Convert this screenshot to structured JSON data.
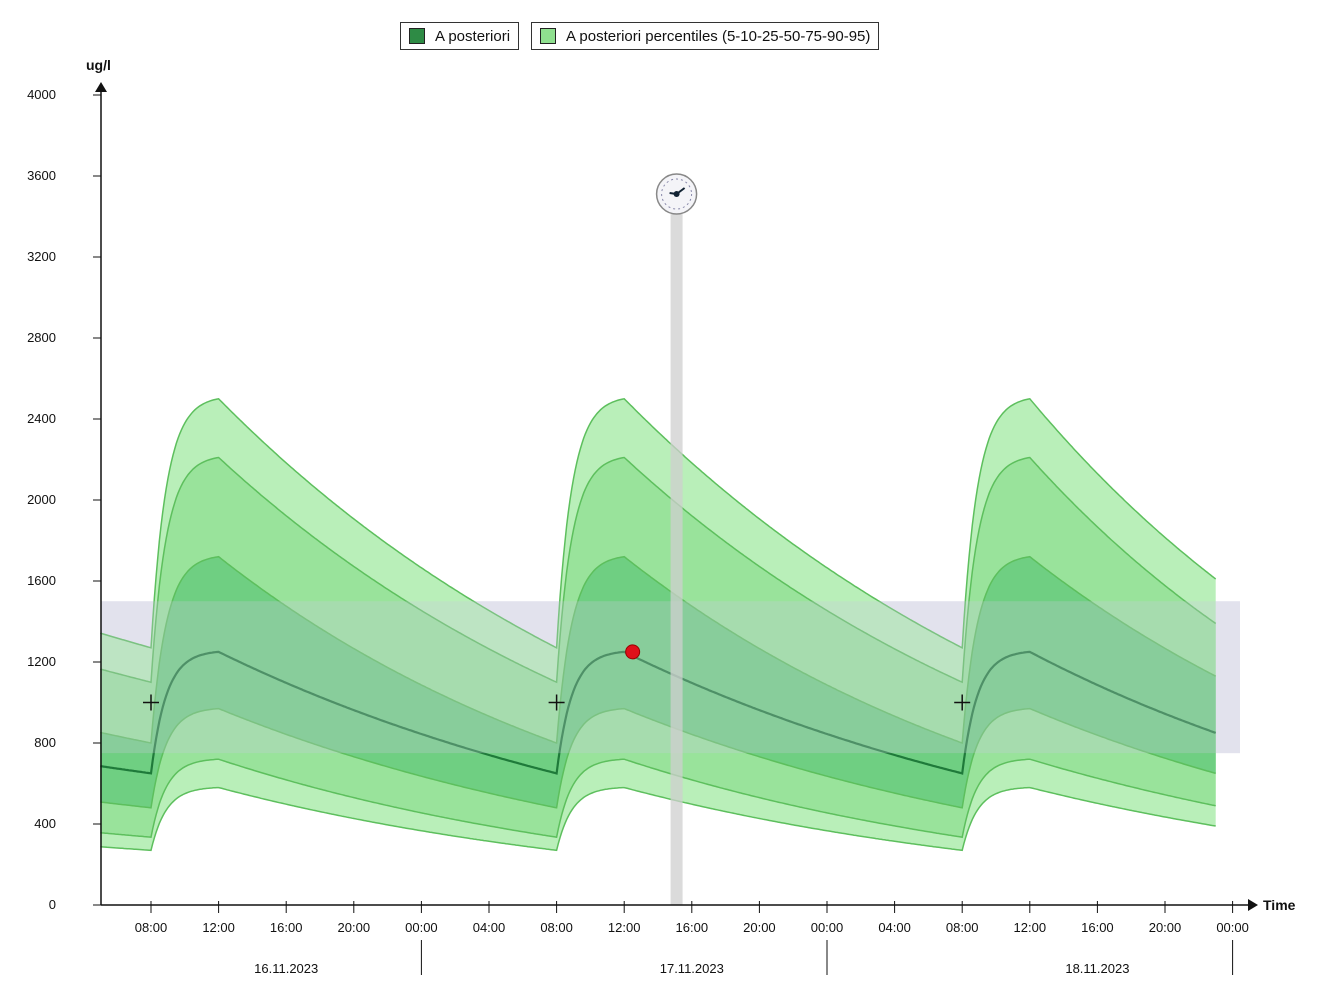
{
  "legend": {
    "items": [
      {
        "label": "A posteriori",
        "color": "#2e8b45"
      },
      {
        "label": "A posteriori percentiles (5-10-25-50-75-90-95)",
        "color": "#8fe08f"
      }
    ]
  },
  "chart_data": {
    "type": "area",
    "ylabel": "ug/l",
    "xlabel": "Time",
    "ylim": [
      0,
      4000
    ],
    "yticks": [
      0,
      400,
      800,
      1200,
      1600,
      2000,
      2400,
      2800,
      3200,
      3600,
      4000
    ],
    "xticks": [
      "08:00",
      "12:00",
      "16:00",
      "20:00",
      "00:00",
      "04:00",
      "08:00",
      "12:00",
      "16:00",
      "20:00",
      "00:00",
      "04:00",
      "08:00",
      "12:00",
      "16:00",
      "20:00",
      "00:00"
    ],
    "date_labels": [
      "16.11.2023",
      "17.11.2023",
      "18.11.2023"
    ],
    "x_range_hours": [
      5,
      71
    ],
    "doses_at_hours": [
      8,
      32,
      56
    ],
    "target_range": [
      750,
      1500
    ],
    "series": [
      {
        "name": "A posteriori",
        "role": "median",
        "trough": 650,
        "peak": 1250,
        "end": 850
      },
      {
        "role": "p5",
        "trough": 270,
        "peak": 580,
        "end": 390
      },
      {
        "role": "p10",
        "trough": 335,
        "peak": 720,
        "end": 490
      },
      {
        "role": "p25",
        "trough": 480,
        "peak": 970,
        "end": 650
      },
      {
        "role": "p75",
        "trough": 800,
        "peak": 1720,
        "end": 1130
      },
      {
        "role": "p90",
        "trough": 1100,
        "peak": 2210,
        "end": 1390
      },
      {
        "role": "p95",
        "trough": 1270,
        "peak": 2500,
        "end": 1610
      }
    ],
    "measurement": {
      "hour": 36.5,
      "value": 1250
    },
    "target_markers": [
      {
        "hour": 8,
        "value": 1000
      },
      {
        "hour": 32,
        "value": 1000
      },
      {
        "hour": 56,
        "value": 1000
      }
    ],
    "current_time_hour": 39.1
  }
}
